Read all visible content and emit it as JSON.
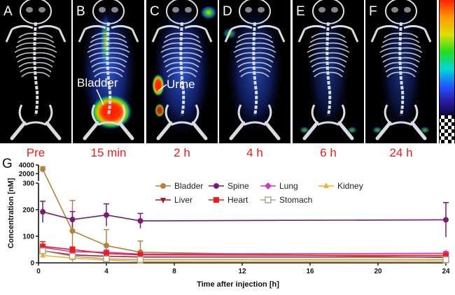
{
  "images": {
    "panels": [
      {
        "letter": "A",
        "time": "Pre"
      },
      {
        "letter": "B",
        "time": "15 min"
      },
      {
        "letter": "C",
        "time": "2 h"
      },
      {
        "letter": "D",
        "time": "4 h"
      },
      {
        "letter": "E",
        "time": "6 h"
      },
      {
        "letter": "F",
        "time": "24 h"
      }
    ],
    "annotations": {
      "bladder": "Bladder",
      "urine": "Urine"
    },
    "colors": {
      "background": "#000000",
      "label": "#ee1c1c",
      "bone": "#d9dde2"
    }
  },
  "chart_letter": "G",
  "chart_data": {
    "type": "line",
    "xlabel": "Time after injection [h]",
    "ylabel": "Concentration [nM]",
    "x_ticks": [
      0,
      4,
      8,
      12,
      16,
      20,
      24
    ],
    "x_tick_labels": [
      "0",
      "4",
      "8",
      "12",
      "16",
      "20",
      "24"
    ],
    "y_ticks": [
      0,
      100,
      200,
      300,
      2000,
      4000
    ],
    "y_tick_labels": [
      "0",
      "100",
      "200",
      "300",
      "2000",
      "4000"
    ],
    "xlim": [
      0,
      24
    ],
    "ylim_lower": [
      0,
      300
    ],
    "ylim_upper": [
      300,
      4000
    ],
    "y_axis_break": true,
    "legend_position": "top-center",
    "x": [
      0.25,
      2,
      4,
      6,
      24
    ],
    "series": [
      {
        "name": "Bladder",
        "color": "#b0843c",
        "marker": "circle",
        "values": [
          3000,
          120,
          65,
          40,
          20
        ],
        "err": [
          600,
          115,
          60,
          42,
          10
        ]
      },
      {
        "name": "Spine",
        "color": "#7a1b6e",
        "marker": "circle",
        "values": [
          192,
          163,
          180,
          158,
          162
        ],
        "err": [
          40,
          30,
          42,
          28,
          65
        ]
      },
      {
        "name": "Lung",
        "color": "#cc3bbf",
        "marker": "diamond",
        "values": [
          58,
          42,
          40,
          33,
          36
        ],
        "err": [
          12,
          8,
          8,
          6,
          6
        ]
      },
      {
        "name": "Kidney",
        "color": "#f2b02c",
        "marker": "triangle-up",
        "values": [
          28,
          18,
          10,
          5,
          6
        ],
        "err": [
          8,
          5,
          4,
          2,
          2
        ]
      },
      {
        "name": "Liver",
        "color": "#a01f2a",
        "marker": "triangle-down",
        "values": [
          45,
          30,
          25,
          22,
          22
        ],
        "err": [
          10,
          8,
          6,
          5,
          5
        ]
      },
      {
        "name": "Heart",
        "color": "#ee1c1c",
        "marker": "square",
        "values": [
          62,
          50,
          35,
          30,
          28
        ],
        "err": [
          18,
          10,
          8,
          6,
          5
        ]
      },
      {
        "name": "Stomach",
        "color": "#a7a58a",
        "marker": "square-open",
        "values": [
          45,
          25,
          15,
          12,
          12
        ],
        "err": [
          10,
          5,
          4,
          4,
          3
        ]
      }
    ]
  }
}
